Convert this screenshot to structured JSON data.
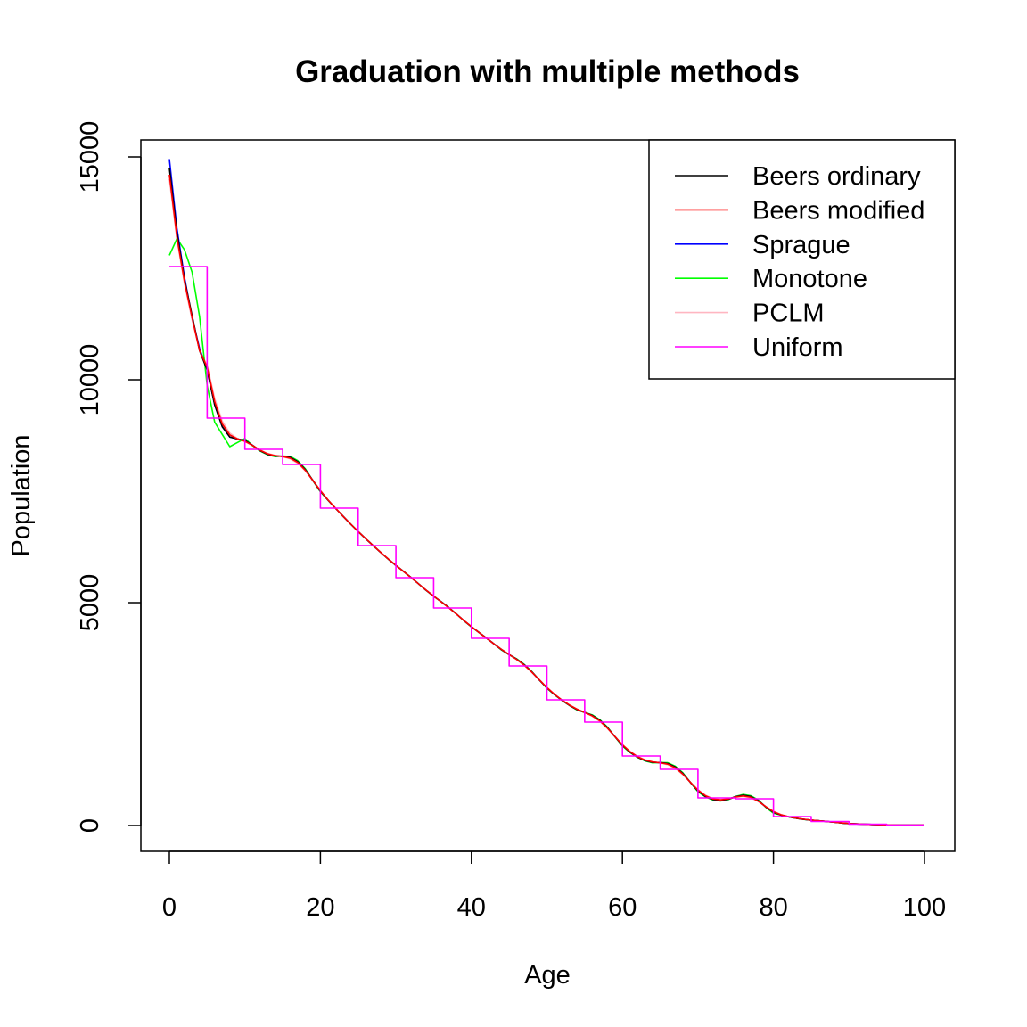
{
  "chart_data": {
    "type": "line",
    "title": "Graduation with multiple methods",
    "xlabel": "Age",
    "ylabel": "Population",
    "xlim": [
      0,
      100
    ],
    "ylim": [
      0,
      15000
    ],
    "xticks": [
      0,
      20,
      40,
      60,
      80,
      100
    ],
    "yticks": [
      0,
      5000,
      10000,
      15000
    ],
    "grid": false,
    "legend_position": "top-right",
    "five_year_totals": [
      62700,
      45700,
      42200,
      40500,
      35600,
      31400,
      27800,
      24400,
      21000,
      17900,
      14100,
      11600,
      7800,
      6300,
      3100,
      3000,
      1000,
      450,
      150,
      50
    ],
    "series": [
      {
        "name": "Beers ordinary",
        "color": "#000000",
        "method": "beers"
      },
      {
        "name": "Beers modified",
        "color": "#ff0000",
        "method": "beers_mod"
      },
      {
        "name": "Sprague",
        "color": "#0000ff",
        "method": "sprague"
      },
      {
        "name": "Monotone",
        "color": "#00ff00",
        "method": "monotone"
      },
      {
        "name": "PCLM",
        "color": "#ffb6c1",
        "method": "pclm"
      },
      {
        "name": "Uniform",
        "color": "#ff00ff",
        "method": "uniform"
      }
    ]
  }
}
